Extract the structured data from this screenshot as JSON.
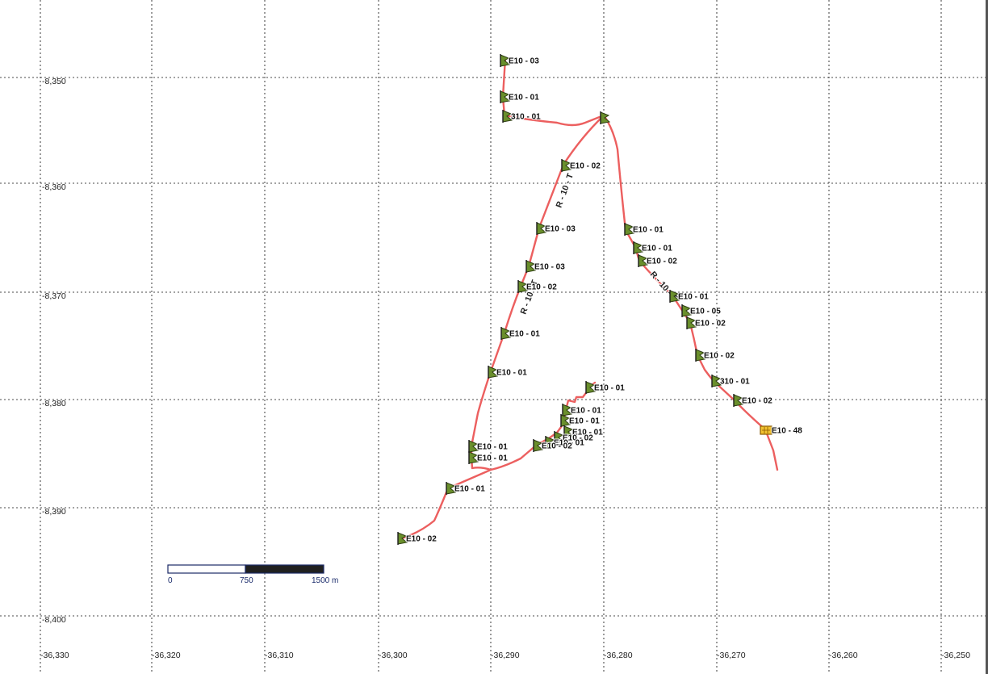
{
  "map": {
    "grid": {
      "x_labels": [
        "-36,330",
        "-36,320",
        "-36,310",
        "-36,300",
        "-36,290",
        "-36,280",
        "-36,270",
        "-36,260",
        "-36,250"
      ],
      "y_labels": [
        "-8,350",
        "-8,360",
        "-8,370",
        "-8,380",
        "-8,390",
        "-8,400"
      ]
    },
    "route_color": "#ec5f5f",
    "route_labels": [
      "R - 10 - T",
      "R - 10 - T",
      "R - 10 - T"
    ],
    "markers": [
      {
        "label": "E10 - 03",
        "icon": "antenna-flag-icon"
      },
      {
        "label": "E10 - 01",
        "icon": "antenna-flag-icon"
      },
      {
        "label": "310 - 01",
        "icon": "antenna-flag-icon"
      },
      {
        "label": "",
        "icon": "antenna-flag-icon"
      },
      {
        "label": "E10 - 02",
        "icon": "antenna-flag-icon"
      },
      {
        "label": "E10 - 03",
        "icon": "antenna-flag-icon"
      },
      {
        "label": "E10 - 03",
        "icon": "antenna-flag-icon"
      },
      {
        "label": "E10 - 02",
        "icon": "antenna-flag-icon"
      },
      {
        "label": "E10 - 01",
        "icon": "antenna-flag-icon"
      },
      {
        "label": "E10 - 01",
        "icon": "antenna-flag-icon"
      },
      {
        "label": "E10 - 01",
        "icon": "antenna-flag-icon"
      },
      {
        "label": "E10 - 01",
        "icon": "antenna-flag-icon"
      },
      {
        "label": "E10 - 01",
        "icon": "antenna-flag-icon"
      },
      {
        "label": "E10 - 02",
        "icon": "antenna-flag-icon"
      },
      {
        "label": "E10 - 01",
        "icon": "antenna-flag-icon"
      },
      {
        "label": "E10 - 01",
        "icon": "antenna-flag-icon"
      },
      {
        "label": "E10 - 01",
        "icon": "antenna-flag-icon"
      },
      {
        "label": "E10 - 01",
        "icon": "antenna-flag-icon"
      },
      {
        "label": "E10 - 02",
        "icon": "antenna-flag-icon"
      },
      {
        "label": "E10 - 01",
        "icon": "antenna-flag-icon"
      },
      {
        "label": "E10 - 02",
        "icon": "antenna-flag-icon"
      },
      {
        "label": "E10 - 01",
        "icon": "antenna-flag-icon"
      },
      {
        "label": "E10 - 01",
        "icon": "antenna-flag-icon"
      },
      {
        "label": "E10 - 02",
        "icon": "antenna-flag-icon"
      },
      {
        "label": "E10 - 01",
        "icon": "antenna-flag-icon"
      },
      {
        "label": "E10 - 05",
        "icon": "antenna-flag-icon"
      },
      {
        "label": "E10 - 02",
        "icon": "antenna-flag-icon"
      },
      {
        "label": "E10 - 02",
        "icon": "antenna-flag-icon"
      },
      {
        "label": "310 - 01",
        "icon": "antenna-flag-icon"
      },
      {
        "label": "E10 - 02",
        "icon": "antenna-flag-icon"
      },
      {
        "label": "E10 - 48",
        "icon": "base-station-icon"
      }
    ],
    "scale_bar": {
      "labels": [
        "0",
        "750",
        "1500 m"
      ]
    }
  }
}
